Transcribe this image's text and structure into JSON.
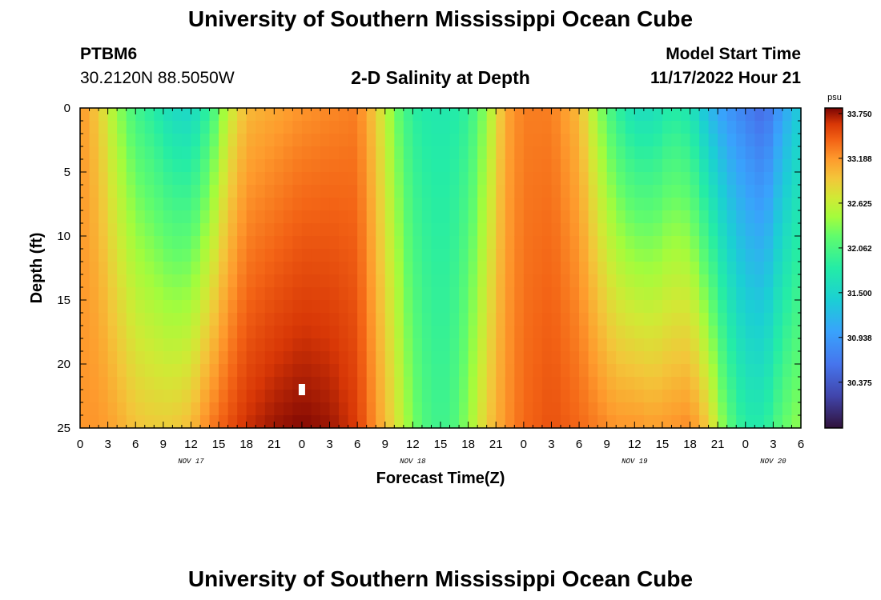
{
  "page": {
    "title": "University of Southern Mississippi Ocean Cube",
    "title_bottom": "University of Southern Mississippi Ocean Cube"
  },
  "header": {
    "station": "PTBM6",
    "coordinates": "30.2120N  88.5050W",
    "plot_title": "2-D Salinity at Depth",
    "model_start_label": "Model Start Time",
    "model_start_value": "11/17/2022 Hour 21"
  },
  "chart_data": {
    "type": "heatmap",
    "title": "2-D Salinity at Depth",
    "xlabel": "Forecast Time(Z)",
    "ylabel": "Depth (ft)",
    "x_tick_labels": [
      "0",
      "3",
      "6",
      "9",
      "12",
      "15",
      "18",
      "21",
      "0",
      "3",
      "6",
      "9",
      "12",
      "15",
      "18",
      "21",
      "0",
      "3",
      "6",
      "9",
      "12",
      "15",
      "18",
      "21",
      "0",
      "3",
      "6"
    ],
    "x_range_hours": [
      0,
      78
    ],
    "date_labels": [
      {
        "label": "NOV 17",
        "hour": 12
      },
      {
        "label": "NOV 18",
        "hour": 36
      },
      {
        "label": "NOV 19",
        "hour": 60
      },
      {
        "label": "NOV 20",
        "hour": 75
      }
    ],
    "y_ticks": [
      0,
      5,
      10,
      15,
      20,
      25
    ],
    "ylim": [
      0,
      25
    ],
    "colorbar": {
      "unit": "psu",
      "ticks": [
        "33.750",
        "33.188",
        "32.625",
        "32.062",
        "31.500",
        "30.938",
        "30.375"
      ],
      "min": 29.8,
      "max": 33.82
    },
    "grid_resolution": {
      "hours_step": 1,
      "depth_step_ft": 1
    },
    "profiles": [
      {
        "hour": 0,
        "surface": 33.2,
        "bottom": 33.2
      },
      {
        "hour": 2,
        "surface": 32.9,
        "bottom": 33.2
      },
      {
        "hour": 4,
        "surface": 32.4,
        "bottom": 33.1
      },
      {
        "hour": 6,
        "surface": 32.0,
        "bottom": 32.95
      },
      {
        "hour": 8,
        "surface": 31.8,
        "bottom": 32.9
      },
      {
        "hour": 10,
        "surface": 31.55,
        "bottom": 32.9
      },
      {
        "hour": 12,
        "surface": 31.5,
        "bottom": 33.0
      },
      {
        "hour": 14,
        "surface": 31.9,
        "bottom": 33.3
      },
      {
        "hour": 16,
        "surface": 32.6,
        "bottom": 33.5
      },
      {
        "hour": 18,
        "surface": 33.0,
        "bottom": 33.65
      },
      {
        "hour": 21,
        "surface": 33.1,
        "bottom": 33.75
      },
      {
        "hour": 24,
        "surface": 33.2,
        "bottom": 33.8
      },
      {
        "hour": 27,
        "surface": 33.25,
        "bottom": 33.75
      },
      {
        "hour": 30,
        "surface": 33.3,
        "bottom": 33.6
      },
      {
        "hour": 32,
        "surface": 32.9,
        "bottom": 33.2
      },
      {
        "hour": 34,
        "surface": 32.3,
        "bottom": 32.8
      },
      {
        "hour": 36,
        "surface": 31.85,
        "bottom": 32.3
      },
      {
        "hour": 38,
        "surface": 31.75,
        "bottom": 32.0
      },
      {
        "hour": 40,
        "surface": 31.75,
        "bottom": 32.0
      },
      {
        "hour": 42,
        "surface": 31.9,
        "bottom": 32.4
      },
      {
        "hour": 44,
        "surface": 32.4,
        "bottom": 32.9
      },
      {
        "hour": 46,
        "surface": 33.1,
        "bottom": 33.2
      },
      {
        "hour": 48,
        "surface": 33.3,
        "bottom": 33.4
      },
      {
        "hour": 51,
        "surface": 33.3,
        "bottom": 33.5
      },
      {
        "hour": 54,
        "surface": 33.0,
        "bottom": 33.4
      },
      {
        "hour": 56,
        "surface": 32.4,
        "bottom": 33.3
      },
      {
        "hour": 58,
        "surface": 31.9,
        "bottom": 33.2
      },
      {
        "hour": 60,
        "surface": 31.6,
        "bottom": 33.2
      },
      {
        "hour": 62,
        "surface": 31.6,
        "bottom": 33.15
      },
      {
        "hour": 64,
        "surface": 31.8,
        "bottom": 33.2
      },
      {
        "hour": 66,
        "surface": 31.7,
        "bottom": 33.25
      },
      {
        "hour": 68,
        "surface": 31.2,
        "bottom": 32.9
      },
      {
        "hour": 70,
        "surface": 30.9,
        "bottom": 32.2
      },
      {
        "hour": 72,
        "surface": 30.7,
        "bottom": 31.8
      },
      {
        "hour": 74,
        "surface": 30.5,
        "bottom": 31.8
      },
      {
        "hour": 76,
        "surface": 31.0,
        "bottom": 32.2
      },
      {
        "hour": 78,
        "surface": 31.4,
        "bottom": 32.4
      }
    ],
    "marker": {
      "hour": 24,
      "depth_ft": 22,
      "note": "white square marker"
    }
  }
}
